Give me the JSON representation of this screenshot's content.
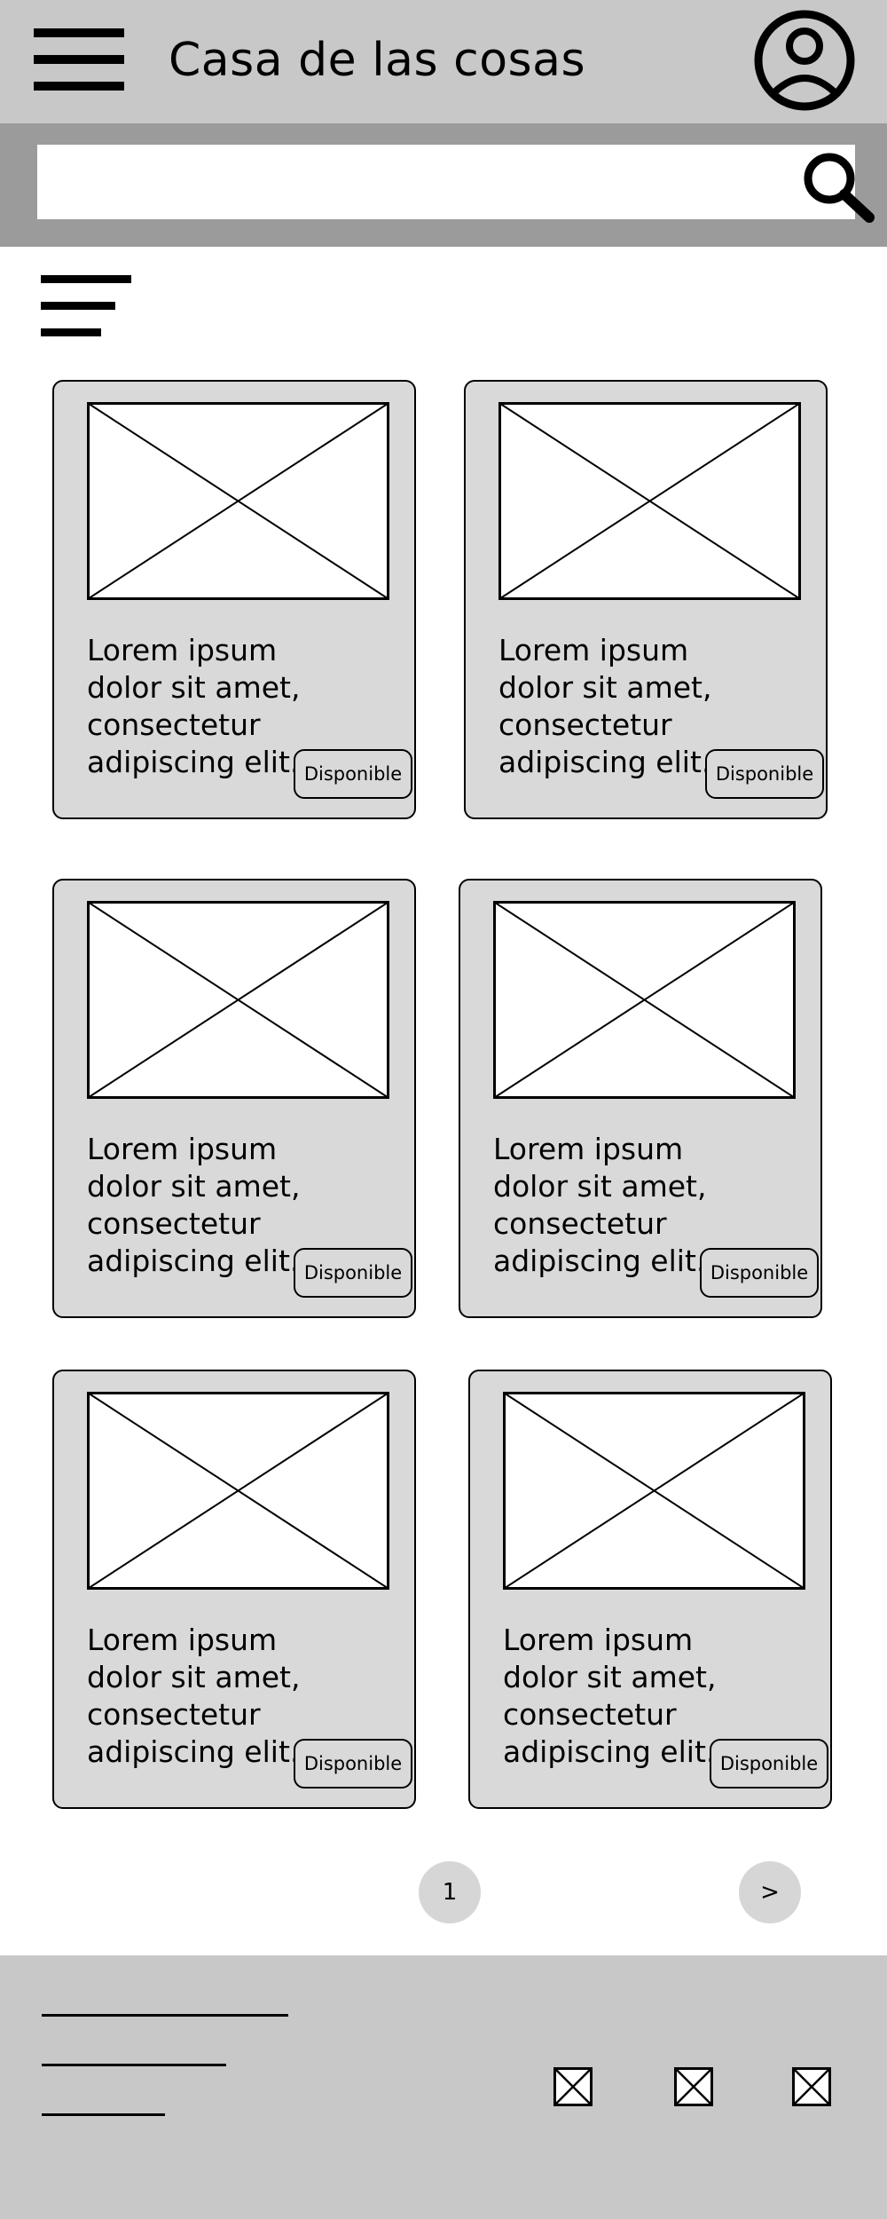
{
  "header": {
    "title": "Casa de las cosas",
    "menu_icon": "hamburger-menu-icon",
    "profile_icon": "user-profile-icon"
  },
  "search": {
    "placeholder": "",
    "value": "",
    "icon": "search-icon"
  },
  "filter": {
    "icon": "filter-icon"
  },
  "products": [
    {
      "description": "Lorem ipsum dolor sit amet, consectetur adipiscing elit.",
      "status": "Disponible"
    },
    {
      "description": "Lorem ipsum dolor sit amet, consectetur adipiscing elit.",
      "status": "Disponible"
    },
    {
      "description": "Lorem ipsum dolor sit amet, consectetur adipiscing elit.",
      "status": "Disponible"
    },
    {
      "description": "Lorem ipsum dolor sit amet, consectetur adipiscing elit.",
      "status": "Disponible"
    },
    {
      "description": "Lorem ipsum dolor sit amet, consectetur adipiscing elit.",
      "status": "Disponible"
    },
    {
      "description": "Lorem ipsum dolor sit amet, consectetur adipiscing elit.",
      "status": "Disponible"
    }
  ],
  "pagination": {
    "current_page": "1",
    "next_label": ">"
  },
  "footer": {
    "social_icons": [
      "placeholder-icon",
      "placeholder-icon",
      "placeholder-icon"
    ]
  },
  "colors": {
    "header_bg": "#c8c8c8",
    "search_bar_bg": "#9b9b9b",
    "card_bg": "#d9d9d9",
    "footer_bg": "#c8c8c8",
    "page_button_bg": "#d6d6d6"
  }
}
